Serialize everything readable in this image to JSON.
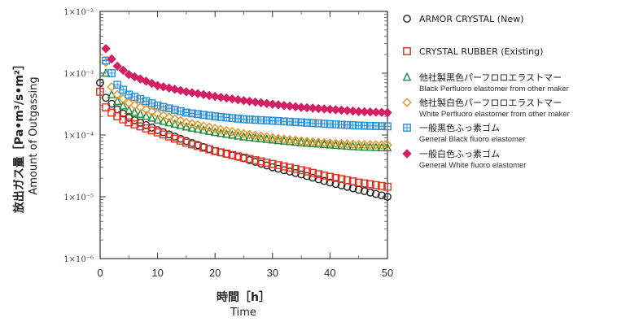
{
  "chart_data": {
    "type": "scatter",
    "xlabel_ja": "時間［h］",
    "xlabel_en": "Time",
    "ylabel_ja": "放出ガス量［Pa•m³/s•m²］",
    "ylabel_en": "Amount of Outgassing",
    "x_ticks": [
      "0",
      "10",
      "20",
      "30",
      "40",
      "50"
    ],
    "y_ticks": [
      "1×10⁻²",
      "1×10⁻³",
      "1×10⁻⁴",
      "1×10⁻⁵",
      "1×10⁻⁶"
    ],
    "xlim": [
      0,
      50
    ],
    "ylim": [
      1e-06,
      0.01
    ],
    "yscale": "log",
    "legend_position": "right",
    "series": [
      {
        "name": "ARMOR CRYSTAL (New)",
        "name_en": "",
        "marker": "circle",
        "color": "#222222",
        "x": [
          0,
          1,
          2,
          3,
          5,
          10,
          15,
          20,
          25,
          30,
          35,
          40,
          45,
          50
        ],
        "y": [
          0.0007,
          0.0004,
          0.00032,
          0.00026,
          0.00019,
          0.00012,
          8e-05,
          5.5e-05,
          4.2e-05,
          3e-05,
          2.3e-05,
          1.7e-05,
          1.3e-05,
          1e-05
        ]
      },
      {
        "name": "CRYSTAL RUBBER (Existing)",
        "name_en": "",
        "marker": "square",
        "color": "#e0321e",
        "x": [
          0,
          1,
          2,
          3,
          5,
          10,
          15,
          20,
          25,
          30,
          35,
          40,
          45,
          50
        ],
        "y": [
          0.0005,
          0.00028,
          0.00023,
          0.0002,
          0.00016,
          0.00011,
          7.5e-05,
          5.5e-05,
          4.3e-05,
          3.4e-05,
          2.7e-05,
          2.1e-05,
          1.7e-05,
          1.45e-05
        ]
      },
      {
        "name": "他社製黒色パーフロロエラストマー",
        "name_en": "Black Perfluoro elastomer from other maker",
        "marker": "triangle",
        "color": "#1f8a3a",
        "x": [
          1,
          2,
          3,
          5,
          10,
          15,
          20,
          25,
          30,
          35,
          40,
          45,
          50
        ],
        "y": [
          0.001,
          0.00045,
          0.00035,
          0.00025,
          0.000175,
          0.000135,
          0.00011,
          9.3e-05,
          8.3e-05,
          7.5e-05,
          6.9e-05,
          6.4e-05,
          6.2e-05
        ]
      },
      {
        "name": "他社製白色パーフロロエラストマー",
        "name_en": "White Perfluoro elastomer from other maker",
        "marker": "diamond",
        "color": "#e8921e",
        "x": [
          1,
          2,
          3,
          5,
          10,
          15,
          20,
          25,
          30,
          35,
          40,
          45,
          50
        ],
        "y": [
          0.0015,
          0.0006,
          0.00045,
          0.00033,
          0.00022,
          0.00016,
          0.000127,
          0.000105,
          9e-05,
          8e-05,
          7.4e-05,
          7e-05,
          6.9e-05
        ]
      },
      {
        "name": "一般黒色ふっ素ゴム",
        "name_en": "General Black fluoro elastomer",
        "marker": "square-plus",
        "color": "#2a8fd8",
        "x": [
          1,
          2,
          3,
          5,
          10,
          15,
          20,
          25,
          30,
          35,
          40,
          45,
          50
        ],
        "y": [
          0.0016,
          0.001,
          0.00065,
          0.00045,
          0.0003,
          0.00023,
          0.0002,
          0.00018,
          0.00017,
          0.00016,
          0.00015,
          0.000142,
          0.000138
        ]
      },
      {
        "name": "一般白色ふっ素ゴム",
        "name_en": "General White fluoro elastomer",
        "marker": "filled-diamond",
        "color": "#d41f64",
        "x": [
          1,
          2,
          3,
          5,
          10,
          15,
          20,
          25,
          30,
          35,
          40,
          45,
          50
        ],
        "y": [
          0.0025,
          0.0017,
          0.0013,
          0.00095,
          0.00063,
          0.0005,
          0.00042,
          0.00036,
          0.000315,
          0.00028,
          0.00026,
          0.00024,
          0.00023
        ]
      }
    ]
  }
}
